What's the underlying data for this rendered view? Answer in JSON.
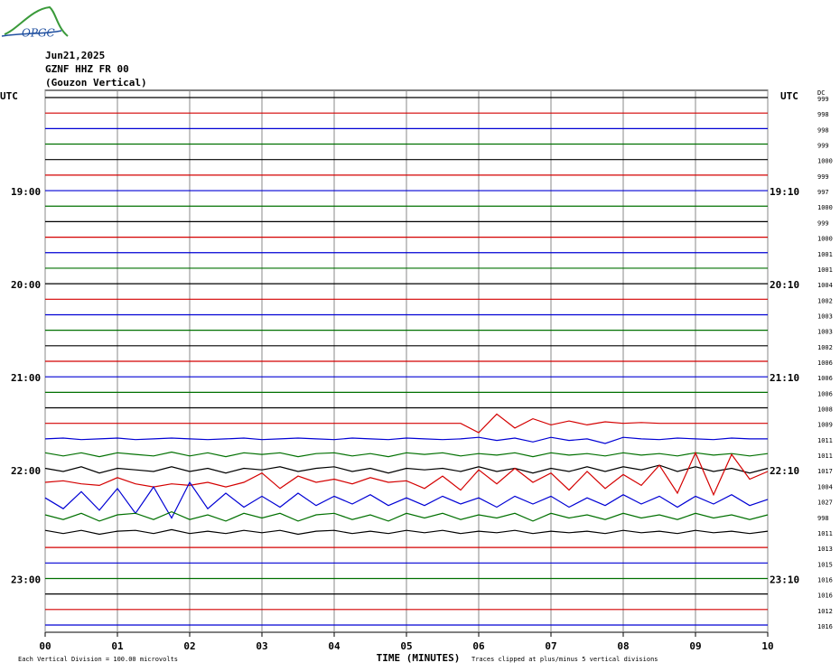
{
  "chart_data": {
    "type": "helicorder",
    "logo": "OPGC",
    "title": "Jun21,2025",
    "subtitle": "GZNF HHZ FR 00",
    "station": "(Gouzon Vertical)",
    "left_header": "UTC",
    "right_header": "UTC",
    "dc_header": "DC",
    "x_label": "TIME (MINUTES)",
    "scale_note": "Each Vertical Division =  100.00 microvolts",
    "clip_note": "Traces clipped at plus/minus 5 vertical divisions",
    "xlim": [
      0,
      10
    ],
    "xticks": [
      {
        "value": 0,
        "label": "00"
      },
      {
        "value": 1,
        "label": "01"
      },
      {
        "value": 2,
        "label": "02"
      },
      {
        "value": 3,
        "label": "03"
      },
      {
        "value": 4,
        "label": "04"
      },
      {
        "value": 5,
        "label": "05"
      },
      {
        "value": 6,
        "label": "06"
      },
      {
        "value": 7,
        "label": "07"
      },
      {
        "value": 8,
        "label": "08"
      },
      {
        "value": 9,
        "label": "09"
      },
      {
        "value": 10,
        "label": "10"
      }
    ],
    "grid": true,
    "trace_colors": [
      "#000000",
      "#d40000",
      "#0000d4",
      "#007000"
    ],
    "sample_minutes": [
      0,
      0.25,
      0.5,
      0.75,
      1,
      1.25,
      1.5,
      1.75,
      2,
      2.25,
      2.5,
      2.75,
      3,
      3.25,
      3.5,
      3.75,
      4,
      4.25,
      4.5,
      4.75,
      5,
      5.25,
      5.5,
      5.75,
      6,
      6.25,
      6.5,
      6.75,
      7,
      7.25,
      7.5,
      7.75,
      8,
      8.25,
      8.5,
      8.75,
      9,
      9.25,
      9.5,
      9.75,
      10
    ],
    "traces": [
      {
        "dc": 999
      },
      {
        "dc": 998
      },
      {
        "dc": 998
      },
      {
        "dc": 999
      },
      {
        "dc": 1000
      },
      {
        "dc": 999
      },
      {
        "dc": 997,
        "left_label": "19:00",
        "right_label": "19:10"
      },
      {
        "dc": 1000
      },
      {
        "dc": 999
      },
      {
        "dc": 1000
      },
      {
        "dc": 1001
      },
      {
        "dc": 1001
      },
      {
        "dc": 1004,
        "left_label": "20:00",
        "right_label": "20:10"
      },
      {
        "dc": 1002
      },
      {
        "dc": 1003
      },
      {
        "dc": 1003
      },
      {
        "dc": 1002
      },
      {
        "dc": 1006
      },
      {
        "dc": 1006,
        "left_label": "21:00",
        "right_label": "21:10"
      },
      {
        "dc": 1006
      },
      {
        "dc": 1008
      },
      {
        "dc": 1009,
        "values": [
          0,
          0,
          0,
          0,
          0,
          0,
          0,
          0,
          0,
          0,
          0,
          0,
          0,
          0,
          0,
          0,
          0,
          0,
          0,
          0,
          0,
          0,
          0,
          0,
          -0.6,
          0.6,
          -0.3,
          0.3,
          -0.1,
          0.15,
          -0.1,
          0.1,
          0,
          0.05,
          0,
          0,
          0,
          0,
          0,
          0,
          0
        ]
      },
      {
        "dc": 1011,
        "values": [
          0,
          0.05,
          -0.05,
          0,
          0.05,
          -0.05,
          0,
          0.05,
          0,
          -0.05,
          0,
          0.05,
          -0.05,
          0,
          0.05,
          0,
          -0.05,
          0.05,
          0,
          -0.05,
          0.05,
          0,
          -0.05,
          0,
          0.1,
          -0.1,
          0.05,
          -0.2,
          0.1,
          -0.1,
          0,
          -0.3,
          0.1,
          0,
          -0.05,
          0.05,
          0,
          -0.05,
          0.05,
          0,
          0
        ]
      },
      {
        "dc": 1011,
        "values": [
          0.1,
          -0.1,
          0.1,
          -0.15,
          0.1,
          0,
          -0.1,
          0.15,
          -0.1,
          0.1,
          -0.15,
          0.1,
          0,
          0.1,
          -0.15,
          0.05,
          0.1,
          -0.1,
          0.05,
          -0.15,
          0.1,
          0,
          0.1,
          -0.1,
          0.05,
          -0.05,
          0.1,
          -0.15,
          0.1,
          -0.05,
          0.05,
          -0.1,
          0.1,
          -0.05,
          0.05,
          -0.1,
          0.1,
          -0.05,
          0.05,
          -0.1,
          0.05
        ]
      },
      {
        "dc": 1017,
        "left_label": "22:00",
        "right_label": "22:10",
        "values": [
          0.1,
          -0.1,
          0.2,
          -0.2,
          0.1,
          0,
          -0.1,
          0.2,
          -0.1,
          0.1,
          -0.2,
          0.1,
          0,
          0.2,
          -0.1,
          0.1,
          0.2,
          -0.1,
          0.1,
          -0.2,
          0.1,
          0,
          0.1,
          -0.1,
          0.2,
          -0.1,
          0.1,
          -0.2,
          0.1,
          -0.1,
          0.2,
          -0.1,
          0.2,
          0,
          0.3,
          -0.1,
          0.2,
          -0.1,
          0.1,
          -0.2,
          0.1
        ]
      },
      {
        "dc": 1004,
        "values": [
          0.2,
          0.3,
          0.1,
          0.0,
          0.5,
          0.1,
          -0.1,
          0.1,
          0.0,
          0.2,
          -0.1,
          0.2,
          0.8,
          -0.2,
          0.6,
          0.2,
          0.4,
          0.1,
          0.5,
          0.2,
          0.3,
          -0.2,
          0.6,
          -0.3,
          1.0,
          0.1,
          1.1,
          0.2,
          0.8,
          -0.3,
          0.9,
          -0.2,
          0.7,
          0.0,
          1.3,
          -0.5,
          2.1,
          -0.6,
          2.0,
          0.4,
          0.9
        ]
      },
      {
        "dc": 1027,
        "values": [
          0.2,
          -0.5,
          0.6,
          -0.6,
          0.8,
          -0.8,
          0.9,
          -1.1,
          1.2,
          -0.5,
          0.5,
          -0.4,
          0.3,
          -0.4,
          0.5,
          -0.3,
          0.3,
          -0.2,
          0.4,
          -0.3,
          0.2,
          -0.3,
          0.3,
          -0.2,
          0.2,
          -0.4,
          0.3,
          -0.2,
          0.3,
          -0.4,
          0.2,
          -0.3,
          0.4,
          -0.2,
          0.3,
          -0.4,
          0.3,
          -0.2,
          0.4,
          -0.3,
          0.1
        ]
      },
      {
        "dc": 998,
        "values": [
          0.1,
          -0.2,
          0.2,
          -0.3,
          0.1,
          0.2,
          -0.2,
          0.3,
          -0.2,
          0.1,
          -0.3,
          0.2,
          -0.1,
          0.2,
          -0.3,
          0.1,
          0.2,
          -0.2,
          0.1,
          -0.3,
          0.2,
          -0.1,
          0.2,
          -0.2,
          0.1,
          -0.1,
          0.2,
          -0.3,
          0.2,
          -0.1,
          0.1,
          -0.2,
          0.2,
          -0.1,
          0.1,
          -0.2,
          0.2,
          -0.1,
          0.1,
          -0.2,
          0.1
        ]
      },
      {
        "dc": 1011,
        "values": [
          0.1,
          -0.1,
          0.1,
          -0.15,
          0.05,
          0.1,
          -0.1,
          0.15,
          -0.1,
          0.05,
          -0.1,
          0.1,
          -0.05,
          0.1,
          -0.15,
          0.05,
          0.1,
          -0.1,
          0.05,
          -0.1,
          0.1,
          -0.05,
          0.1,
          -0.1,
          0.05,
          -0.05,
          0.1,
          -0.1,
          0.05,
          -0.05,
          0.05,
          -0.1,
          0.1,
          -0.05,
          0.05,
          -0.1,
          0.1,
          -0.05,
          0.05,
          -0.1,
          0.05
        ]
      },
      {
        "dc": 1013
      },
      {
        "dc": 1015
      },
      {
        "dc": 1016,
        "left_label": "23:00",
        "right_label": "23:10"
      },
      {
        "dc": 1016
      },
      {
        "dc": 1012
      },
      {
        "dc": 1016
      }
    ]
  }
}
